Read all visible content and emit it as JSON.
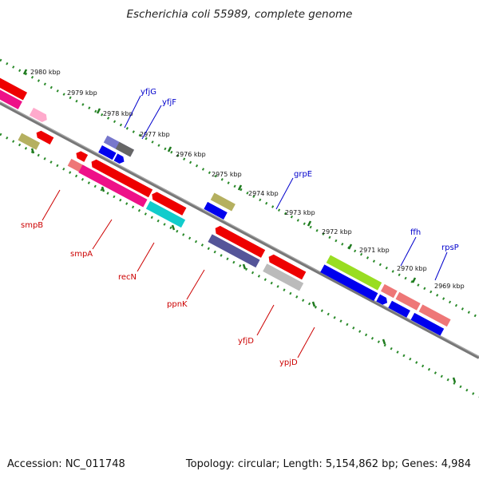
{
  "title": "Escherichia coli 55989, complete genome",
  "footer": {
    "accession": "Accession: NC_011748",
    "summary": "Topology: circular; Length: 5,154,862 bp; Genes: 4,984"
  },
  "colors": {
    "backbone": "#7a7a7a",
    "tick_track": "#2a8a2a",
    "forward_label": "#0000cc",
    "reverse_label": "#cc0000"
  },
  "kbp_labels": [
    "2980 kbp",
    "2979 kbp",
    "2978 kbp",
    "2977 kbp",
    "2976 kbp",
    "2975 kbp",
    "2974 kbp",
    "2973 kbp",
    "2972 kbp",
    "2971 kbp",
    "2970 kbp",
    "2969 kbp"
  ],
  "forward_genes": [
    "yfjG",
    "yfjF",
    "grpE",
    "ffh",
    "rpsP"
  ],
  "reverse_genes": [
    "smpB",
    "smpA",
    "recN",
    "ppnK",
    "yfjD",
    "ypjD"
  ]
}
